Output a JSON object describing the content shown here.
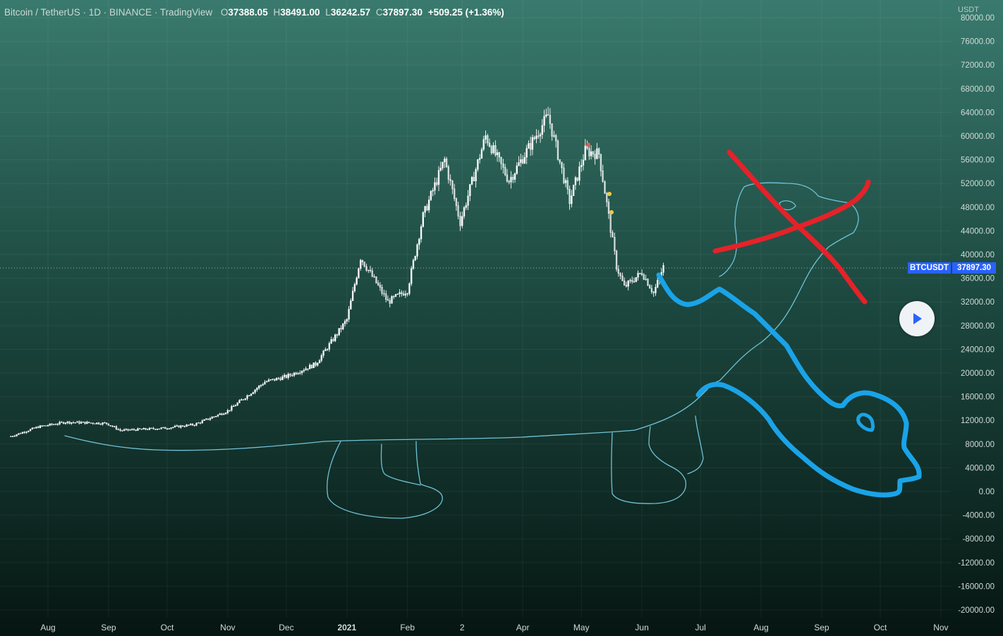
{
  "window": {
    "title": "Bitcoin / TetherUS · 1D · BINANCE · TradingView"
  },
  "legend": {
    "o_label": "O",
    "o_value": "37388.05",
    "h_label": "H",
    "h_value": "38491.00",
    "l_label": "L",
    "l_value": "36242.57",
    "c_label": "C",
    "c_value": "37897.30",
    "change": "+509.25 (+1.36%)"
  },
  "price_axis": {
    "unit": "USDT"
  },
  "last_price": {
    "symbol": "BTCUSDT",
    "value": "37897.30"
  },
  "colors": {
    "bg_top": "#3a7a6e",
    "bg_bottom": "#061612",
    "candles": "#ffffff",
    "blue_drawing": "#1aa3e8",
    "red_drawing": "#e52229",
    "thin_drawing": "#6fc3d8"
  },
  "icons": {
    "play": "play-icon"
  },
  "chart_data": {
    "type": "candlestick",
    "title": "Bitcoin / TetherUS · 1D · BINANCE · TradingView",
    "ylim": [
      -22000,
      82000
    ],
    "y_ticks": [
      "80000.00",
      "76000.00",
      "72000.00",
      "68000.00",
      "64000.00",
      "60000.00",
      "56000.00",
      "52000.00",
      "48000.00",
      "44000.00",
      "40000.00",
      "36000.00",
      "32000.00",
      "28000.00",
      "24000.00",
      "20000.00",
      "16000.00",
      "12000.00",
      "8000.00",
      "4000.00",
      "0.00",
      "-4000.00",
      "-8000.00",
      "-12000.00",
      "-16000.00",
      "-20000.00"
    ],
    "x_ticks": [
      "Aug",
      "Sep",
      "Oct",
      "Nov",
      "Dec",
      "2021",
      "Feb",
      "2",
      "Apr",
      "May",
      "Jun",
      "Jul",
      "Aug",
      "Sep",
      "Oct",
      "Nov"
    ],
    "price_keypoints": [
      [
        "2020-07-13",
        9300
      ],
      [
        "2020-07-27",
        10900
      ],
      [
        "2020-08-10",
        11700
      ],
      [
        "2020-08-31",
        11500
      ],
      [
        "2020-09-07",
        10300
      ],
      [
        "2020-09-30",
        10700
      ],
      [
        "2020-10-15",
        11300
      ],
      [
        "2020-11-01",
        13600
      ],
      [
        "2020-11-20",
        18500
      ],
      [
        "2020-12-01",
        19400
      ],
      [
        "2020-12-16",
        21500
      ],
      [
        "2021-01-01",
        29000
      ],
      [
        "2021-01-08",
        39500
      ],
      [
        "2021-01-22",
        32000
      ],
      [
        "2021-02-01",
        34000
      ],
      [
        "2021-02-09",
        46500
      ],
      [
        "2021-02-20",
        56000
      ],
      [
        "2021-02-28",
        45500
      ],
      [
        "2021-03-13",
        60000
      ],
      [
        "2021-03-25",
        52500
      ],
      [
        "2021-04-14",
        63500
      ],
      [
        "2021-04-25",
        49000
      ],
      [
        "2021-05-03",
        57500
      ],
      [
        "2021-05-10",
        57000
      ],
      [
        "2021-05-19",
        38000
      ],
      [
        "2021-05-23",
        34500
      ],
      [
        "2021-06-01",
        37000
      ],
      [
        "2021-06-07",
        33500
      ],
      [
        "2021-06-12",
        37897.3
      ]
    ],
    "last": {
      "open": 37388.05,
      "high": 38491.0,
      "low": 36242.57,
      "close": 37897.3,
      "change": 509.25,
      "change_pct": 1.36
    },
    "grid": true
  }
}
